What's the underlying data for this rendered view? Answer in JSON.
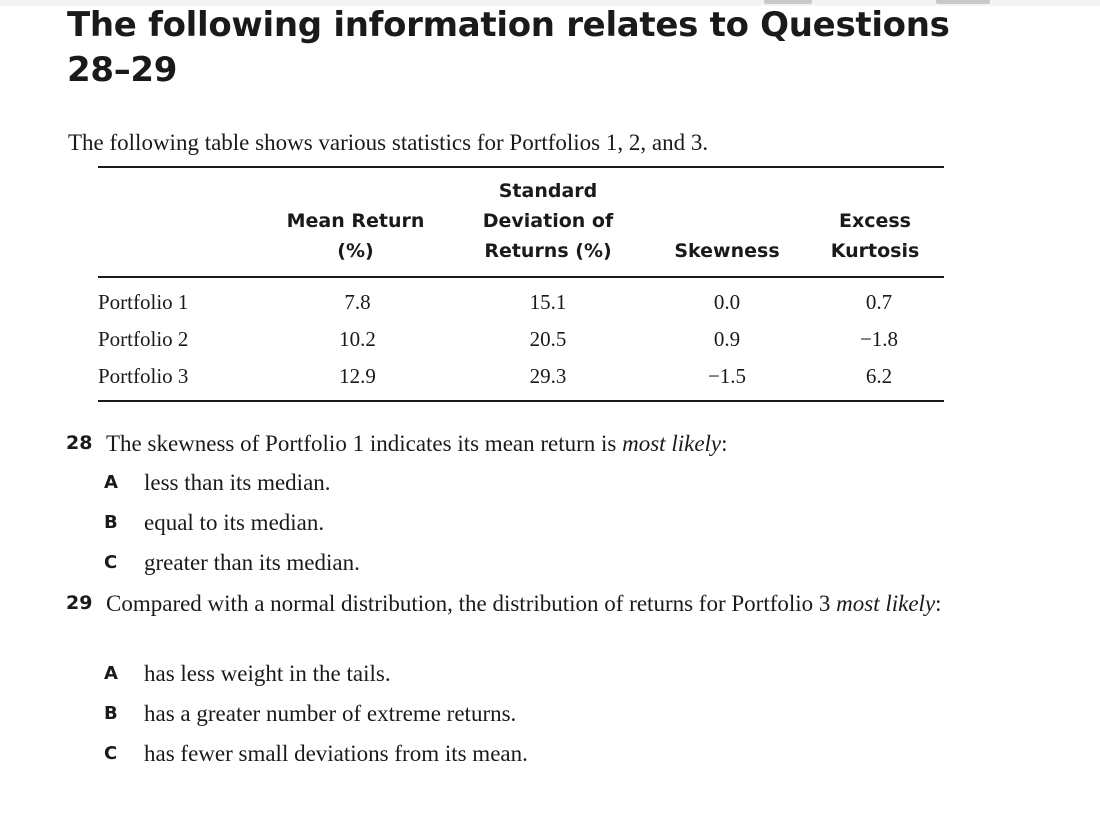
{
  "heading": {
    "line1": "The following information relates to Questions",
    "line2": "28–29"
  },
  "intro": "The following table shows various statistics for Portfolios 1, 2, and 3.",
  "table": {
    "headers": [
      [
        "Mean Return",
        "(%)"
      ],
      [
        "Standard",
        "Deviation of",
        "Returns (%)"
      ],
      [
        "Skewness"
      ],
      [
        "Excess",
        "Kurtosis"
      ]
    ],
    "rows": [
      [
        "Portfolio 1",
        "7.8",
        "15.1",
        "0.0",
        "0.7"
      ],
      [
        "Portfolio 2",
        "10.2",
        "20.5",
        "0.9",
        "−1.8"
      ],
      [
        "Portfolio 3",
        "12.9",
        "29.3",
        "−1.5",
        "6.2"
      ]
    ]
  },
  "questions": [
    {
      "number": "28",
      "text_before": "The skewness of Portfolio 1 indicates its mean return is ",
      "text_emphasis": "most likely",
      "text_after": ":",
      "options": [
        {
          "letter": "A",
          "text": "less than its median."
        },
        {
          "letter": "B",
          "text": "equal to its median."
        },
        {
          "letter": "C",
          "text": "greater than its median."
        }
      ]
    },
    {
      "number": "29",
      "text_before": "Compared with a normal distribution, the distribution of returns for Portfolio 3 ",
      "text_emphasis": "most likely",
      "text_after": ":",
      "options": [
        {
          "letter": "A",
          "text": "has less weight in the tails."
        },
        {
          "letter": "B",
          "text": "has a greater number of extreme returns."
        },
        {
          "letter": "C",
          "text": "has fewer small deviations from its mean."
        }
      ]
    }
  ]
}
